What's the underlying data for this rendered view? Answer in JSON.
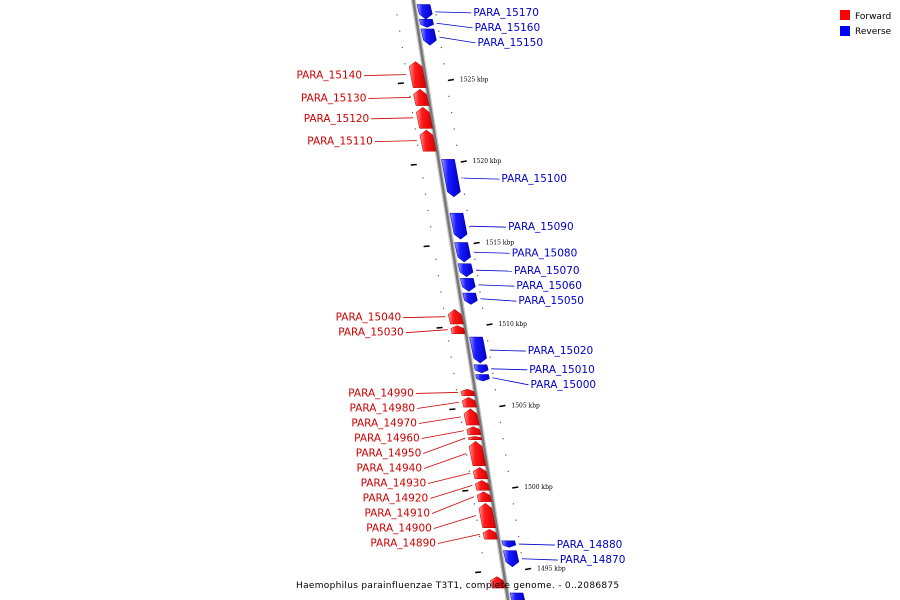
{
  "caption": "Haemophilus parainfluenzae T3T1, complete genome. - 0..2086875",
  "legend": [
    {
      "label": "Forward",
      "color": "#ff0000"
    },
    {
      "label": "Reverse",
      "color": "#0000ff"
    }
  ],
  "ticks": [
    {
      "label": "1525 kbp",
      "pos": 1525
    },
    {
      "label": "1520 kbp",
      "pos": 1520
    },
    {
      "label": "1515 kbp",
      "pos": 1515
    },
    {
      "label": "1510 kbp",
      "pos": 1510
    },
    {
      "label": "1505 kbp",
      "pos": 1505
    },
    {
      "label": "1500 kbp",
      "pos": 1500
    },
    {
      "label": "1495 kbp",
      "pos": 1495
    }
  ],
  "genes": [
    {
      "id": "PARA_15170",
      "strand": "reverse",
      "start": 1529.6,
      "end": 1528.7
    },
    {
      "id": "PARA_15160",
      "strand": "reverse",
      "start": 1528.7,
      "end": 1528.2
    },
    {
      "id": "PARA_15150",
      "strand": "reverse",
      "start": 1528.1,
      "end": 1527.1
    },
    {
      "id": "PARA_15140",
      "strand": "forward",
      "start": 1526.1,
      "end": 1524.5
    },
    {
      "id": "PARA_15130",
      "strand": "forward",
      "start": 1524.4,
      "end": 1523.4
    },
    {
      "id": "PARA_15120",
      "strand": "forward",
      "start": 1523.3,
      "end": 1522.0
    },
    {
      "id": "PARA_15110",
      "strand": "forward",
      "start": 1521.9,
      "end": 1520.6
    },
    {
      "id": "PARA_15100",
      "strand": "reverse",
      "start": 1520.1,
      "end": 1517.8
    },
    {
      "id": "PARA_15090",
      "strand": "reverse",
      "start": 1516.8,
      "end": 1515.2
    },
    {
      "id": "PARA_15080",
      "strand": "reverse",
      "start": 1515.0,
      "end": 1513.8
    },
    {
      "id": "PARA_15070",
      "strand": "reverse",
      "start": 1513.7,
      "end": 1512.9
    },
    {
      "id": "PARA_15060",
      "strand": "reverse",
      "start": 1512.8,
      "end": 1512.0
    },
    {
      "id": "PARA_15050",
      "strand": "reverse",
      "start": 1511.9,
      "end": 1511.2
    },
    {
      "id": "PARA_15040",
      "strand": "forward",
      "start": 1510.9,
      "end": 1510.0
    },
    {
      "id": "PARA_15030",
      "strand": "forward",
      "start": 1509.9,
      "end": 1509.4
    },
    {
      "id": "PARA_15020",
      "strand": "reverse",
      "start": 1509.2,
      "end": 1507.6
    },
    {
      "id": "PARA_15010",
      "strand": "reverse",
      "start": 1507.5,
      "end": 1507.0
    },
    {
      "id": "PARA_15000",
      "strand": "reverse",
      "start": 1506.9,
      "end": 1506.5
    },
    {
      "id": "PARA_14990",
      "strand": "forward",
      "start": 1506.0,
      "end": 1505.6
    },
    {
      "id": "PARA_14980",
      "strand": "forward",
      "start": 1505.5,
      "end": 1504.9
    },
    {
      "id": "PARA_14970",
      "strand": "forward",
      "start": 1504.8,
      "end": 1503.8
    },
    {
      "id": "PARA_14960",
      "strand": "forward",
      "start": 1503.7,
      "end": 1503.2
    },
    {
      "id": "PARA_14950",
      "strand": "forward",
      "start": 1503.1,
      "end": 1502.9
    },
    {
      "id": "PARA_14940",
      "strand": "forward",
      "start": 1502.8,
      "end": 1501.3
    },
    {
      "id": "PARA_14930",
      "strand": "forward",
      "start": 1501.2,
      "end": 1500.5
    },
    {
      "id": "PARA_14920",
      "strand": "forward",
      "start": 1500.4,
      "end": 1499.8
    },
    {
      "id": "PARA_14910",
      "strand": "forward",
      "start": 1499.7,
      "end": 1499.1
    },
    {
      "id": "PARA_14900",
      "strand": "forward",
      "start": 1499.0,
      "end": 1497.5
    },
    {
      "id": "PARA_14890",
      "strand": "forward",
      "start": 1497.4,
      "end": 1496.8
    },
    {
      "id": "PARA_14880",
      "strand": "reverse",
      "start": 1496.7,
      "end": 1496.3
    },
    {
      "id": "PARA_14870",
      "strand": "reverse",
      "start": 1496.1,
      "end": 1495.1
    },
    {
      "id": "",
      "strand": "forward",
      "start": 1494.5,
      "end": 1493.8
    },
    {
      "id": "",
      "strand": "reverse",
      "start": 1493.5,
      "end": 1492.8
    }
  ]
}
